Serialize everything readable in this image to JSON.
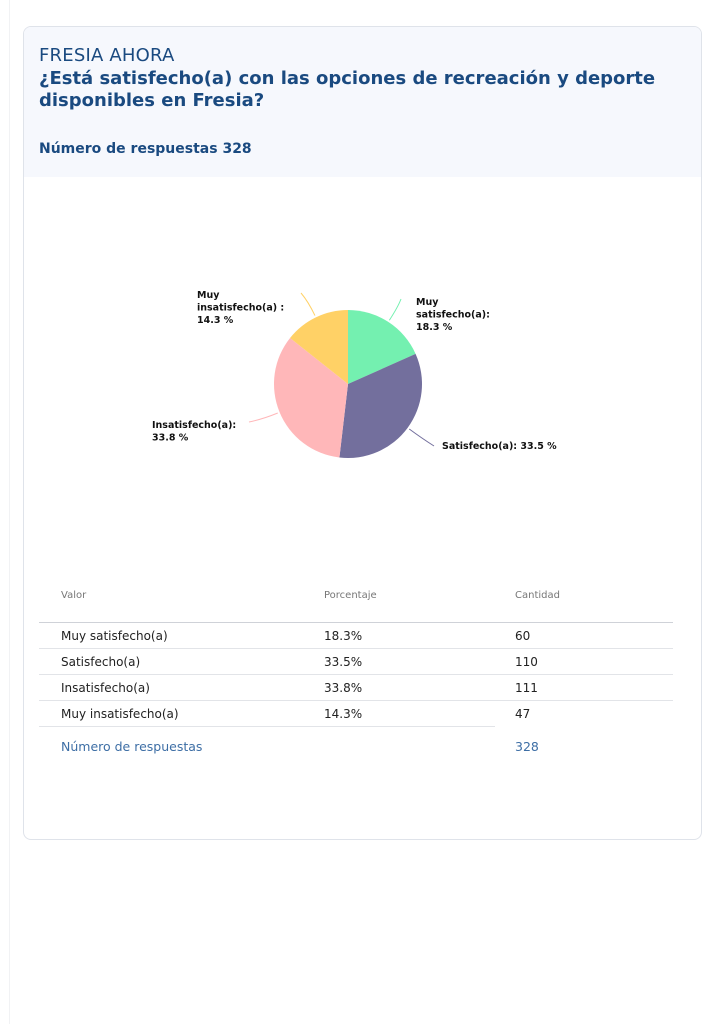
{
  "header": {
    "brand": "FRESIA AHORA",
    "question": "¿Está satisfecho(a) con las opciones de recreación y deporte disponibles en Fresia?",
    "responses_label": "Número de respuestas 328"
  },
  "chart_data": {
    "type": "pie",
    "labels": [
      "Muy satisfecho(a)",
      "Satisfecho(a)",
      "Insatisfecho(a)",
      "Muy insatisfecho(a)"
    ],
    "values": [
      18.3,
      33.5,
      33.8,
      14.3
    ],
    "colors": [
      "#74f0b0",
      "#736f9d",
      "#ffb7b9",
      "#ffd166"
    ],
    "label_lines": [
      [
        "Muy",
        "satisfecho(a):",
        "18.3 %"
      ],
      [
        "Satisfecho(a): 33.5 %"
      ],
      [
        "Insatisfecho(a):",
        "33.8 %"
      ],
      [
        "Muy",
        "insatisfecho(a) :",
        "14.3 %"
      ]
    ]
  },
  "table": {
    "headers": [
      "Valor",
      "Porcentaje",
      "Cantidad"
    ],
    "rows": [
      {
        "valor": "Muy satisfecho(a)",
        "porcentaje": "18.3%",
        "cantidad": "60"
      },
      {
        "valor": "Satisfecho(a)",
        "porcentaje": "33.5%",
        "cantidad": "110"
      },
      {
        "valor": "Insatisfecho(a)",
        "porcentaje": "33.8%",
        "cantidad": "111"
      },
      {
        "valor": "Muy insatisfecho(a)",
        "porcentaje": "14.3%",
        "cantidad": "47"
      }
    ],
    "footer_label": "Número de respuestas",
    "footer_value": "328"
  }
}
